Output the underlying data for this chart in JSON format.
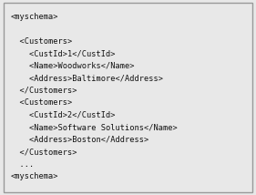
{
  "lines": [
    "<myschema>",
    "",
    "  <Customers>",
    "    <CustId>1</CustId>",
    "    <Name>Woodworks</Name>",
    "    <Address>Baltimore</Address>",
    "  </Customers>",
    "  <Customers>",
    "    <CustId>2</CustId>",
    "    <Name>Software Solutions</Name>",
    "    <Address>Boston</Address>",
    "  </Customers>",
    "  ...",
    "<myschema>"
  ],
  "bg_color": "#e8e8e8",
  "border_color": "#999999",
  "text_color": "#111111",
  "font_size": 6.2,
  "font_family": "monospace",
  "fig_width": 2.81,
  "fig_height": 2.14,
  "dpi": 100
}
